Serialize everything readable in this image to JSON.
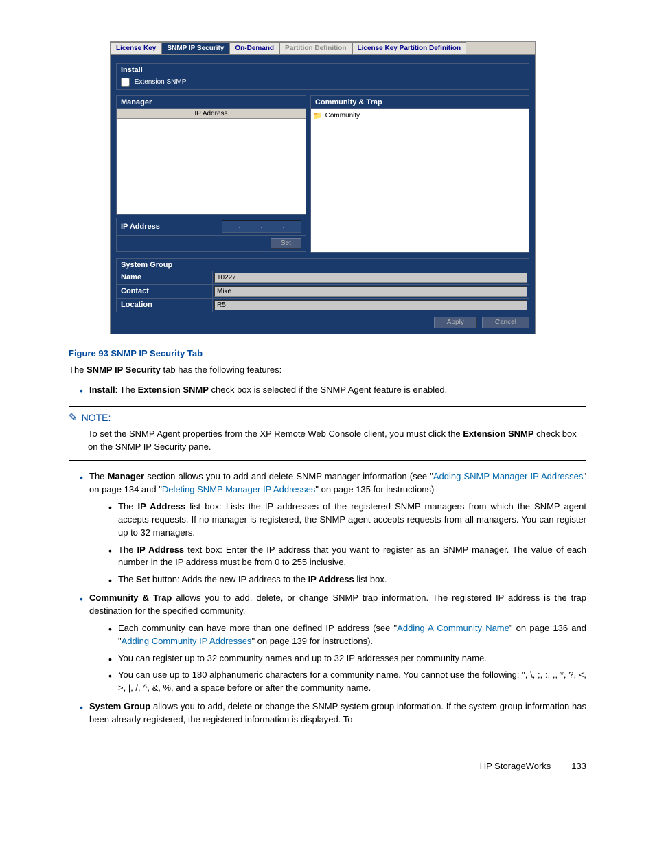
{
  "app": {
    "tabs": [
      {
        "label": "License Key",
        "active": false
      },
      {
        "label": "SNMP IP Security",
        "active": true
      },
      {
        "label": "On-Demand",
        "active": false
      },
      {
        "label": "Partition Definition",
        "active": false,
        "disabled": true
      },
      {
        "label": "License Key Partition Definition",
        "active": false
      }
    ],
    "install": {
      "title": "Install",
      "checkbox_label": "Extension SNMP"
    },
    "manager": {
      "title": "Manager",
      "list_header": "IP Address",
      "ip_label": "IP Address",
      "set_button": "Set"
    },
    "community": {
      "title": "Community & Trap",
      "item_label": "Community"
    },
    "system_group": {
      "title": "System Group",
      "rows": [
        {
          "label": "Name",
          "value": "10227"
        },
        {
          "label": "Contact",
          "value": "Mike"
        },
        {
          "label": "Location",
          "value": "R5"
        }
      ]
    },
    "buttons": {
      "apply": "Apply",
      "cancel": "Cancel"
    }
  },
  "doc": {
    "figure_caption": "Figure 93 SNMP IP Security Tab",
    "intro": {
      "pre": "The ",
      "bold": "SNMP IP Security",
      "post": " tab has the following features:"
    },
    "install_bullet": {
      "b1": "Install",
      "mid": ": The ",
      "b2": "Extension SNMP",
      "post": " check box is selected if the SNMP Agent feature is enabled."
    },
    "note": {
      "title": "NOTE:",
      "body_pre": "To set the SNMP Agent properties from the XP Remote Web Console client, you must click the ",
      "body_bold": "Extension SNMP",
      "body_post": " check box on the SNMP IP Security pane."
    },
    "manager_bullet": {
      "pre": "The ",
      "b1": "Manager",
      "mid1": " section allows you to add and delete SNMP manager information (see \"",
      "link1": "Adding SNMP Manager IP Addresses",
      "mid2": "\" on page 134 and \"",
      "link2": "Deleting SNMP Manager IP Addresses",
      "mid3": "\" on page 135 for instructions)"
    },
    "manager_sub": [
      {
        "pre": "The ",
        "b": "IP Address",
        "post": " list box: Lists the IP addresses of the registered SNMP managers from which the SNMP agent accepts requests. If no manager is registered, the SNMP agent accepts requests from all managers. You can register up to 32 managers."
      },
      {
        "pre": "The ",
        "b": "IP Address",
        "post": " text box: Enter the IP address that you want to register as an SNMP manager. The value of each number in the IP address must be from 0 to 255 inclusive."
      },
      {
        "pre": "The ",
        "b": "Set",
        "mid": " button: Adds the new IP address to the ",
        "b2": "IP Address",
        "post": " list box."
      }
    ],
    "community_bullet": {
      "b": "Community & Trap",
      "post": " allows you to add, delete, or change SNMP trap information. The registered IP address is the trap destination for the specified community."
    },
    "community_sub": [
      {
        "pre": "Each community can have more than one defined IP address (see \"",
        "link1": "Adding A Community Name",
        "mid": "\" on page 136 and \"",
        "link2": "Adding Community IP Addresses",
        "post": "\" on page 139 for instructions)."
      },
      {
        "text": "You can register up to 32 community names and up to 32 IP addresses per community name."
      },
      {
        "text": "You can use up to 180 alphanumeric characters for a community name. You cannot use the following: \", \\, ;, :, ,, *, ?, <, >, |, /, ^, &, %, and a space before or after the community name."
      }
    ],
    "sysgroup_bullet": {
      "b": "System Group",
      "post": " allows you to add, delete or change the SNMP system group information. If the system group information has been already registered, the registered information is displayed. To"
    },
    "footer": {
      "label": "HP StorageWorks",
      "page": "133"
    },
    "colors": {
      "heading": "#004a9c",
      "link": "#0066aa",
      "app_bg": "#1a3a6b"
    }
  }
}
